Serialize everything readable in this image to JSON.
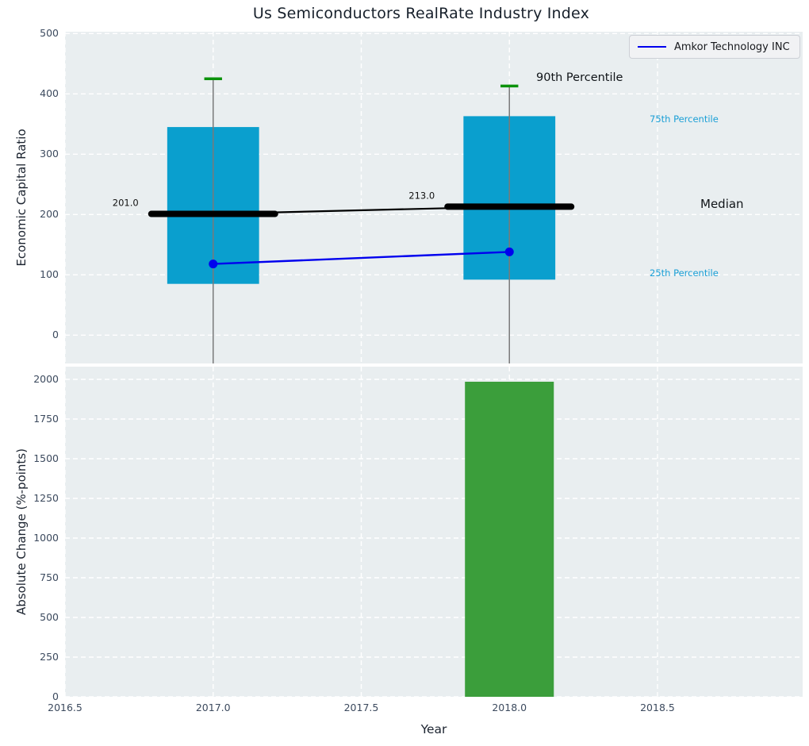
{
  "title": "Us Semiconductors RealRate Industry Index",
  "legend": {
    "series_label": "Amkor Technology INC"
  },
  "overlay_labels": {
    "p90": "90th Percentile",
    "p75": "75th Percentile",
    "median": "Median",
    "p25": "25th Percentile"
  },
  "chart_data": [
    {
      "type": "bar",
      "subtype": "percentile-range bars with median line and company line",
      "title": "Us Semiconductors RealRate Industry Index",
      "ylabel": "Economic Capital Ratio",
      "x": [
        2017,
        2018
      ],
      "series": [
        {
          "name": "90th Percentile",
          "values": [
            425,
            413
          ]
        },
        {
          "name": "75th Percentile",
          "values": [
            345,
            363
          ]
        },
        {
          "name": "Median",
          "values": [
            201,
            213
          ]
        },
        {
          "name": "25th Percentile",
          "values": [
            85,
            92
          ]
        },
        {
          "name": "Amkor Technology INC",
          "values": [
            118,
            138
          ]
        }
      ],
      "median_annotations": [
        "201.0",
        "213.0"
      ],
      "yticks": [
        0,
        100,
        200,
        300,
        400,
        500
      ],
      "xticks": [
        2016.5,
        2017.0,
        2017.5,
        2018.0,
        2018.5
      ],
      "xtick_labels": [
        "2016.5",
        "2017.0",
        "2017.5",
        "2018.0",
        "2018.5"
      ],
      "xlim": [
        2016.5,
        2018.99
      ],
      "ylim": [
        -47,
        503
      ],
      "bar_width": 0.31,
      "cap_width": 0.06,
      "grid": "white dashed",
      "legend_position": "upper right",
      "colors": {
        "iqr_bar": "#0a9fce",
        "p90_cap": "#0b920b",
        "whisker": "#7a7a7a",
        "median": "#000000",
        "company_line": "#0000ee",
        "percentile_label": "#1a9fd6"
      }
    },
    {
      "type": "bar",
      "ylabel": "Absolute Change (%-points)",
      "xlabel": "Year",
      "x": [
        2018
      ],
      "values": [
        1985
      ],
      "yticks": [
        0,
        250,
        500,
        750,
        1000,
        1250,
        1500,
        1750,
        2000
      ],
      "xticks": [
        2016.5,
        2017.0,
        2017.5,
        2018.0,
        2018.5
      ],
      "xtick_labels": [
        "2016.5",
        "2017.0",
        "2017.5",
        "2018.0",
        "2018.5"
      ],
      "xlim": [
        2016.5,
        2018.99
      ],
      "ylim": [
        0,
        2080
      ],
      "bar_width": 0.3,
      "grid": "white dashed",
      "bar_color": "#3b9e3b"
    }
  ]
}
